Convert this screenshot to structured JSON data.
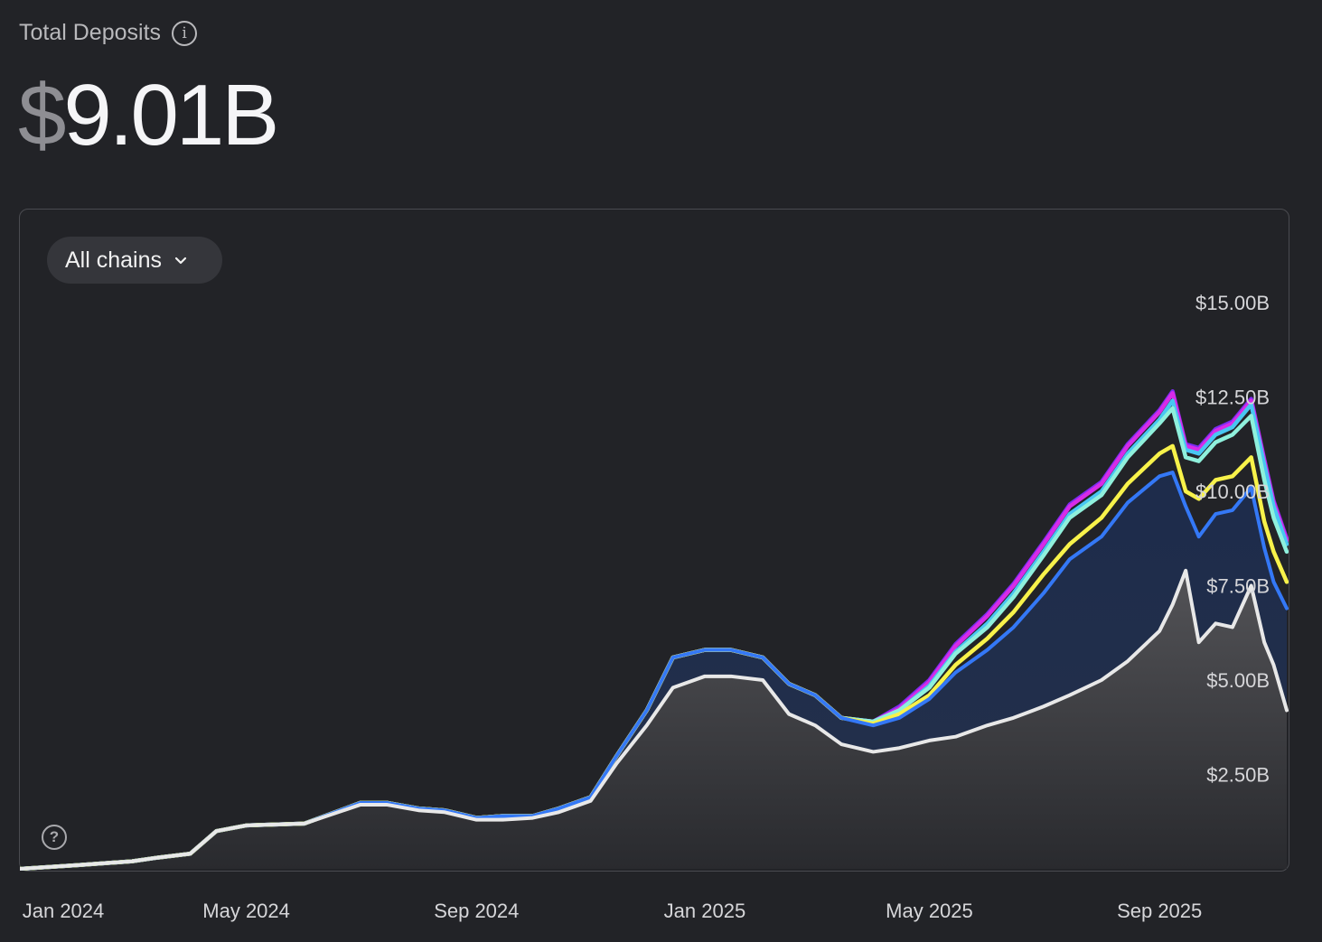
{
  "header": {
    "title": "Total Deposits",
    "info_icon": "info-icon"
  },
  "total": {
    "currency": "$",
    "amount": "9.01B"
  },
  "filter": {
    "selected": "All chains",
    "icon": "chevron-down-icon"
  },
  "help_icon": "question-mark-icon",
  "colors": {
    "background": "#222327",
    "base_line": "#e8e8e8",
    "blue": "#3478f6",
    "yellow": "#f8f24a",
    "mint": "#8ff0dc",
    "cyan": "#48c6f2",
    "magenta": "#d82be8",
    "violet": "#7b2cf0"
  },
  "chart_data": {
    "type": "area",
    "title": "",
    "xlabel": "",
    "ylabel": "",
    "ylim": [
      0,
      15
    ],
    "y_unit": "billions USD",
    "xlim": [
      "2024-01-01",
      "2025-11-08"
    ],
    "x_ticks": [
      {
        "date": "2024-01-01",
        "label": "Jan 2024"
      },
      {
        "date": "2024-05-01",
        "label": "May 2024"
      },
      {
        "date": "2024-09-01",
        "label": "Sep 2024"
      },
      {
        "date": "2025-01-01",
        "label": "Jan 2025"
      },
      {
        "date": "2025-05-01",
        "label": "May 2025"
      },
      {
        "date": "2025-09-01",
        "label": "Sep 2025"
      }
    ],
    "y_ticks": [
      {
        "value": 2.5,
        "label": "$2.50B"
      },
      {
        "value": 5,
        "label": "$5.00B"
      },
      {
        "value": 7.5,
        "label": "$7.50B"
      },
      {
        "value": 10,
        "label": "$10.00B"
      },
      {
        "value": 12.5,
        "label": "$12.50B"
      },
      {
        "value": 15,
        "label": "$15.00B"
      }
    ],
    "grid": false,
    "legend": "none",
    "x": [
      "2024-01-01",
      "2024-02-01",
      "2024-03-01",
      "2024-03-15",
      "2024-04-01",
      "2024-04-15",
      "2024-05-01",
      "2024-06-01",
      "2024-07-01",
      "2024-07-15",
      "2024-08-01",
      "2024-08-15",
      "2024-09-01",
      "2024-09-15",
      "2024-10-01",
      "2024-10-15",
      "2024-11-01",
      "2024-11-15",
      "2024-12-01",
      "2024-12-15",
      "2025-01-01",
      "2025-01-15",
      "2025-02-01",
      "2025-02-15",
      "2025-03-01",
      "2025-03-15",
      "2025-04-01",
      "2025-04-15",
      "2025-05-01",
      "2025-05-15",
      "2025-06-01",
      "2025-06-15",
      "2025-07-01",
      "2025-07-15",
      "2025-08-01",
      "2025-08-15",
      "2025-09-01",
      "2025-09-08",
      "2025-09-15",
      "2025-09-22",
      "2025-10-01",
      "2025-10-10",
      "2025-10-20",
      "2025-10-27",
      "2025-11-01",
      "2025-11-08"
    ],
    "series": [
      {
        "color": "#e8e8e8",
        "values": [
          0,
          0.1,
          0.2,
          0.3,
          0.4,
          1.0,
          1.15,
          1.2,
          1.7,
          1.7,
          1.55,
          1.5,
          1.3,
          1.3,
          1.35,
          1.5,
          1.8,
          2.8,
          3.8,
          4.8,
          5.1,
          5.1,
          5.0,
          4.1,
          3.8,
          3.3,
          3.1,
          3.2,
          3.4,
          3.5,
          3.8,
          4.0,
          4.3,
          4.6,
          5.0,
          5.5,
          6.3,
          7.0,
          7.9,
          6.0,
          6.5,
          6.4,
          7.5,
          6.0,
          5.4,
          4.2
        ]
      },
      {
        "color": "#3478f6",
        "values": [
          0,
          0.1,
          0.2,
          0.3,
          0.4,
          1.0,
          1.15,
          1.2,
          1.75,
          1.75,
          1.6,
          1.55,
          1.35,
          1.4,
          1.4,
          1.6,
          1.9,
          3.0,
          4.2,
          5.6,
          5.8,
          5.8,
          5.6,
          4.9,
          4.6,
          4.0,
          3.8,
          4.0,
          4.5,
          5.2,
          5.8,
          6.4,
          7.3,
          8.2,
          8.8,
          9.7,
          10.4,
          10.5,
          9.6,
          8.8,
          9.4,
          9.5,
          10.1,
          8.5,
          7.6,
          6.9
        ]
      },
      {
        "color": "#f8f24a",
        "values": [
          0,
          0.1,
          0.2,
          0.3,
          0.4,
          1.0,
          1.15,
          1.2,
          1.75,
          1.75,
          1.6,
          1.55,
          1.35,
          1.4,
          1.4,
          1.6,
          1.9,
          3.0,
          4.2,
          5.6,
          5.8,
          5.8,
          5.6,
          4.9,
          4.6,
          4.0,
          3.85,
          4.1,
          4.6,
          5.4,
          6.1,
          6.8,
          7.8,
          8.6,
          9.3,
          10.2,
          11.0,
          11.2,
          10.0,
          9.8,
          10.3,
          10.4,
          10.9,
          9.2,
          8.4,
          7.6
        ]
      },
      {
        "color": "#8ff0dc",
        "values": [
          0,
          0.1,
          0.2,
          0.3,
          0.4,
          1.0,
          1.15,
          1.2,
          1.75,
          1.75,
          1.6,
          1.55,
          1.35,
          1.4,
          1.4,
          1.6,
          1.9,
          3.0,
          4.2,
          5.6,
          5.8,
          5.8,
          5.6,
          4.9,
          4.6,
          4.0,
          3.9,
          4.2,
          4.8,
          5.7,
          6.4,
          7.2,
          8.3,
          9.3,
          9.9,
          10.9,
          11.8,
          12.2,
          10.9,
          10.8,
          11.3,
          11.5,
          12.0,
          10.3,
          9.3,
          8.4
        ]
      },
      {
        "color": "#48c6f2",
        "values": [
          0,
          0.1,
          0.2,
          0.3,
          0.4,
          1.0,
          1.15,
          1.2,
          1.75,
          1.75,
          1.6,
          1.55,
          1.35,
          1.4,
          1.4,
          1.6,
          1.9,
          3.0,
          4.2,
          5.6,
          5.8,
          5.8,
          5.6,
          4.9,
          4.6,
          4.0,
          3.9,
          4.2,
          4.85,
          5.75,
          6.5,
          7.3,
          8.4,
          9.4,
          10.0,
          11.0,
          11.9,
          12.4,
          11.1,
          11.0,
          11.5,
          11.7,
          12.3,
          10.7,
          9.6,
          8.6
        ]
      },
      {
        "color": "#d82be8",
        "values": [
          0,
          0.1,
          0.2,
          0.3,
          0.4,
          1.0,
          1.15,
          1.2,
          1.75,
          1.75,
          1.6,
          1.55,
          1.35,
          1.4,
          1.4,
          1.6,
          1.9,
          3.0,
          4.2,
          5.6,
          5.8,
          5.8,
          5.6,
          4.9,
          4.6,
          4.0,
          3.9,
          4.25,
          4.95,
          5.9,
          6.7,
          7.5,
          8.6,
          9.6,
          10.2,
          11.2,
          12.1,
          12.6,
          11.2,
          11.1,
          11.6,
          11.8,
          12.4,
          10.8,
          9.7,
          8.7
        ]
      },
      {
        "color": "#7b2cf0",
        "values": [
          0,
          0.1,
          0.2,
          0.3,
          0.4,
          1.0,
          1.15,
          1.2,
          1.75,
          1.75,
          1.6,
          1.55,
          1.35,
          1.4,
          1.4,
          1.6,
          1.9,
          3.0,
          4.2,
          5.6,
          5.8,
          5.8,
          5.6,
          4.9,
          4.6,
          4.0,
          3.9,
          4.3,
          5.0,
          5.95,
          6.75,
          7.55,
          8.65,
          9.65,
          10.25,
          11.25,
          12.15,
          12.65,
          11.25,
          11.15,
          11.65,
          11.85,
          12.45,
          10.85,
          9.75,
          8.75
        ]
      }
    ]
  }
}
